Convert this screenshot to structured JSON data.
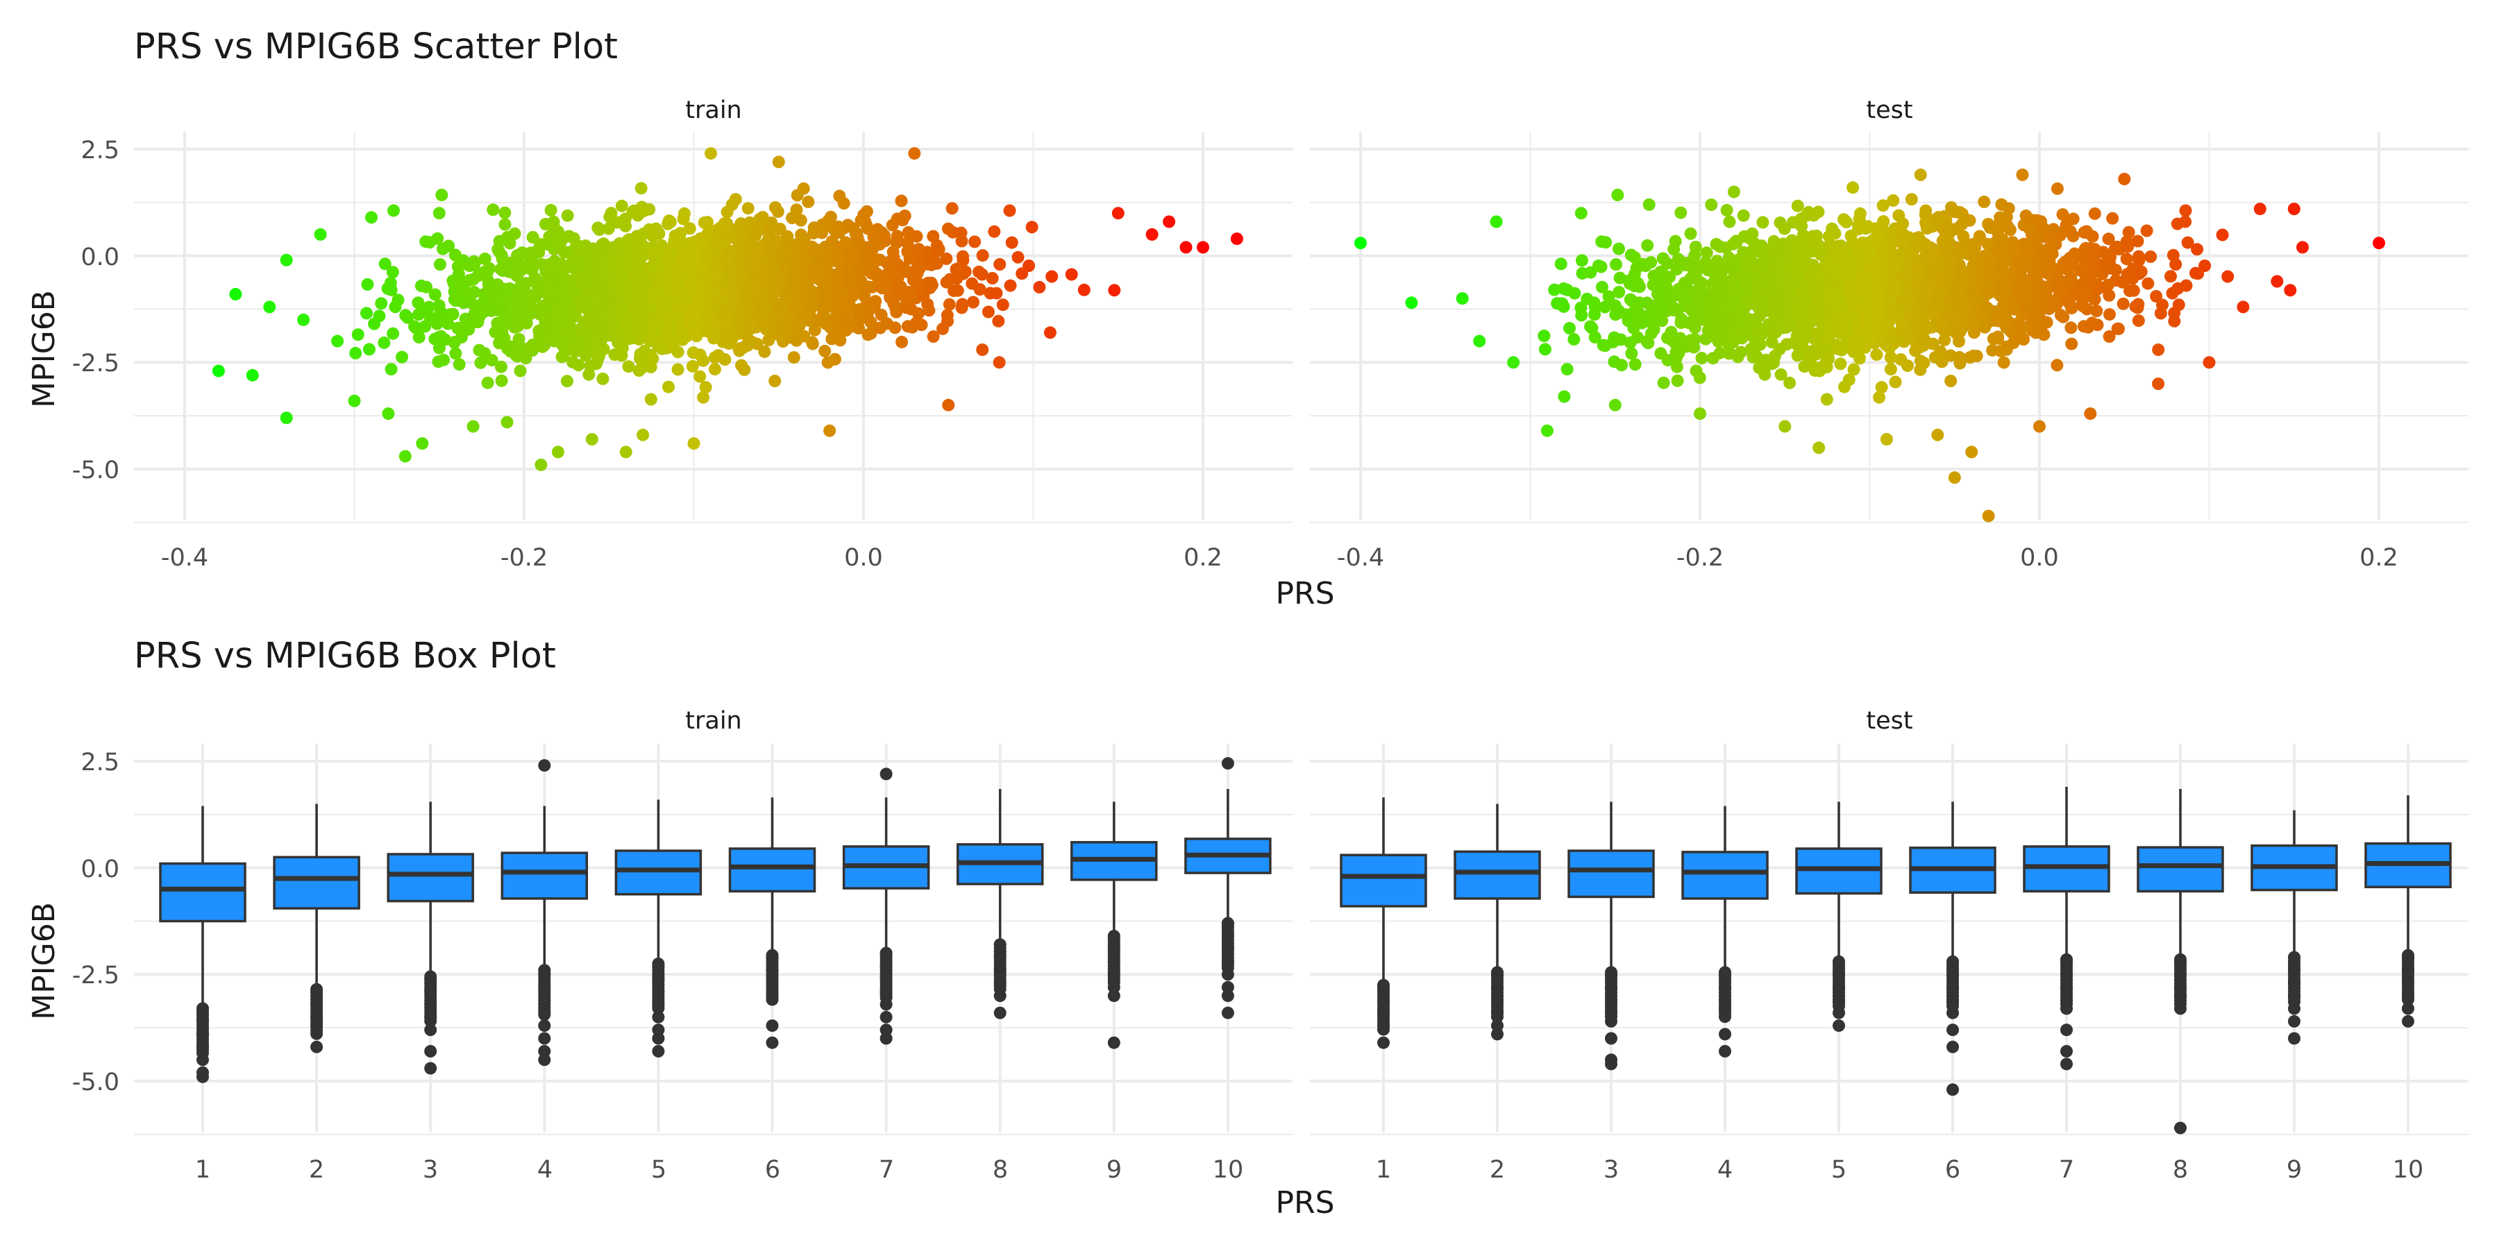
{
  "chart_data": [
    {
      "type": "scatter",
      "title": "PRS vs MPIG6B Scatter Plot",
      "xlabel": "PRS",
      "ylabel": "MPIG6B",
      "facets": [
        "train",
        "test"
      ],
      "xticks": [
        "-0.4",
        "-0.2",
        "0.0",
        "0.2"
      ],
      "yticks": [
        "2.5",
        "0.0",
        "-2.5",
        "-5.0"
      ],
      "xlim": [
        -0.43,
        0.25
      ],
      "ylim": [
        -6.3,
        2.8
      ],
      "grid": true,
      "color_scale": {
        "low": "#00ff00",
        "high": "#ff0000",
        "mapped_to": "PRS"
      },
      "series": [
        {
          "facet": "train",
          "values": [
            [
              -0.38,
              -2.7
            ],
            [
              -0.37,
              -0.9
            ],
            [
              -0.36,
              -2.8
            ],
            [
              -0.35,
              -1.2
            ],
            [
              -0.34,
              -0.1
            ],
            [
              -0.34,
              -3.8
            ],
            [
              -0.33,
              -1.5
            ],
            [
              -0.32,
              0.5
            ],
            [
              -0.31,
              -2.0
            ],
            [
              -0.3,
              -3.4
            ],
            [
              -0.29,
              0.9
            ],
            [
              -0.28,
              -3.7
            ],
            [
              -0.27,
              -4.7
            ],
            [
              -0.26,
              -4.4
            ],
            [
              -0.25,
              1.0
            ],
            [
              -0.23,
              -4.0
            ],
            [
              -0.21,
              -3.9
            ],
            [
              -0.19,
              -4.9
            ],
            [
              -0.18,
              -4.6
            ],
            [
              -0.16,
              -4.3
            ],
            [
              -0.14,
              -4.6
            ],
            [
              -0.13,
              -4.2
            ],
            [
              -0.1,
              -4.4
            ],
            [
              -0.09,
              2.4
            ],
            [
              -0.05,
              2.2
            ],
            [
              -0.02,
              -4.1
            ],
            [
              0.03,
              2.4
            ],
            [
              0.05,
              -3.5
            ],
            [
              0.08,
              -2.5
            ],
            [
              0.11,
              -1.8
            ],
            [
              0.13,
              -0.8
            ],
            [
              0.15,
              1.0
            ],
            [
              0.17,
              0.5
            ],
            [
              0.18,
              0.8
            ],
            [
              0.19,
              0.2
            ],
            [
              0.2,
              0.2
            ],
            [
              0.22,
              0.4
            ]
          ]
        },
        {
          "facet": "test",
          "values": [
            [
              -0.4,
              0.3
            ],
            [
              -0.37,
              -1.1
            ],
            [
              -0.34,
              -1.0
            ],
            [
              -0.33,
              -2.0
            ],
            [
              -0.32,
              0.8
            ],
            [
              -0.31,
              -2.5
            ],
            [
              -0.29,
              -4.1
            ],
            [
              -0.28,
              -3.3
            ],
            [
              -0.27,
              1.0
            ],
            [
              -0.25,
              -3.5
            ],
            [
              -0.23,
              1.2
            ],
            [
              -0.2,
              -3.7
            ],
            [
              -0.18,
              1.5
            ],
            [
              -0.15,
              -4.0
            ],
            [
              -0.13,
              -4.5
            ],
            [
              -0.11,
              1.6
            ],
            [
              -0.09,
              -4.3
            ],
            [
              -0.07,
              1.9
            ],
            [
              -0.06,
              -4.2
            ],
            [
              -0.05,
              -5.2
            ],
            [
              -0.04,
              -4.6
            ],
            [
              -0.03,
              -6.1
            ],
            [
              -0.01,
              1.9
            ],
            [
              0.0,
              -4.0
            ],
            [
              0.03,
              -3.7
            ],
            [
              0.05,
              1.8
            ],
            [
              0.07,
              -3.0
            ],
            [
              0.1,
              -2.5
            ],
            [
              0.12,
              -1.2
            ],
            [
              0.13,
              1.1
            ],
            [
              0.14,
              -0.6
            ],
            [
              0.15,
              1.1
            ],
            [
              0.155,
              0.2
            ],
            [
              0.2,
              0.3
            ]
          ]
        }
      ]
    },
    {
      "type": "box",
      "title": "PRS vs MPIG6B Box Plot",
      "xlabel": "PRS",
      "ylabel": "MPIG6B",
      "facets": [
        "train",
        "test"
      ],
      "categories": [
        "1",
        "2",
        "3",
        "4",
        "5",
        "6",
        "7",
        "8",
        "9",
        "10"
      ],
      "yticks": [
        "2.5",
        "0.0",
        "-2.5",
        "-5.0"
      ],
      "ylim": [
        -6.3,
        2.8
      ],
      "grid": true,
      "fill": "#1e90ff",
      "series": [
        {
          "facet": "train",
          "boxes": [
            {
              "q1": -1.25,
              "median": -0.5,
              "q3": 0.1,
              "whisker_low": -3.2,
              "whisker_high": 1.45,
              "outliers": [
                -3.3,
                -3.6,
                -3.9,
                -4.2,
                -4.5,
                -4.8,
                -4.9
              ]
            },
            {
              "q1": -0.95,
              "median": -0.25,
              "q3": 0.25,
              "whisker_low": -2.75,
              "whisker_high": 1.5,
              "outliers": [
                -2.9,
                -3.2,
                -3.5,
                -3.7,
                -4.2
              ]
            },
            {
              "q1": -0.78,
              "median": -0.15,
              "q3": 0.32,
              "whisker_low": -2.45,
              "whisker_high": 1.55,
              "outliers": [
                -2.6,
                -2.9,
                -3.2,
                -3.5,
                -3.8,
                -4.3,
                -4.7
              ]
            },
            {
              "q1": -0.72,
              "median": -0.1,
              "q3": 0.35,
              "whisker_low": -2.3,
              "whisker_high": 1.45,
              "outliers": [
                -2.5,
                -2.8,
                -3.1,
                -3.4,
                -3.7,
                -4.0,
                -4.3,
                -4.5,
                2.4
              ]
            },
            {
              "q1": -0.62,
              "median": -0.05,
              "q3": 0.4,
              "whisker_low": -2.15,
              "whisker_high": 1.6,
              "outliers": [
                -2.3,
                -2.6,
                -2.9,
                -3.2,
                -3.5,
                -3.8,
                -4.0,
                -4.3
              ]
            },
            {
              "q1": -0.55,
              "median": 0.02,
              "q3": 0.45,
              "whisker_low": -1.95,
              "whisker_high": 1.65,
              "outliers": [
                -2.1,
                -2.4,
                -2.7,
                -3.0,
                -3.7,
                -4.1
              ]
            },
            {
              "q1": -0.48,
              "median": 0.05,
              "q3": 0.5,
              "whisker_low": -1.9,
              "whisker_high": 1.65,
              "outliers": [
                -2.0,
                -2.3,
                -2.6,
                -2.9,
                -3.2,
                -3.5,
                -3.8,
                -4.0,
                2.2
              ]
            },
            {
              "q1": -0.38,
              "median": 0.12,
              "q3": 0.55,
              "whisker_low": -1.7,
              "whisker_high": 1.85,
              "outliers": [
                -1.8,
                -2.1,
                -2.4,
                -2.7,
                -3.0,
                -3.4
              ]
            },
            {
              "q1": -0.28,
              "median": 0.2,
              "q3": 0.6,
              "whisker_low": -1.55,
              "whisker_high": 1.55,
              "outliers": [
                -1.6,
                -1.9,
                -2.2,
                -2.5,
                -2.8,
                -3.0,
                -4.1
              ]
            },
            {
              "q1": -0.12,
              "median": 0.3,
              "q3": 0.68,
              "whisker_low": -1.2,
              "whisker_high": 1.85,
              "outliers": [
                -1.3,
                -1.6,
                -1.9,
                -2.2,
                -2.5,
                -2.8,
                -3.0,
                -3.4,
                2.45
              ]
            }
          ]
        },
        {
          "facet": "test",
          "boxes": [
            {
              "q1": -0.9,
              "median": -0.2,
              "q3": 0.3,
              "whisker_low": -2.65,
              "whisker_high": 1.65,
              "outliers": [
                -2.8,
                -3.1,
                -3.4,
                -3.7,
                -4.1
              ]
            },
            {
              "q1": -0.72,
              "median": -0.1,
              "q3": 0.38,
              "whisker_low": -2.35,
              "whisker_high": 1.5,
              "outliers": [
                -2.5,
                -2.8,
                -3.1,
                -3.4,
                -3.7,
                -3.9
              ]
            },
            {
              "q1": -0.68,
              "median": -0.05,
              "q3": 0.4,
              "whisker_low": -2.35,
              "whisker_high": 1.55,
              "outliers": [
                -2.5,
                -2.8,
                -3.1,
                -3.4,
                -3.6,
                -4.0,
                -4.5,
                -4.6
              ]
            },
            {
              "q1": -0.72,
              "median": -0.1,
              "q3": 0.37,
              "whisker_low": -2.35,
              "whisker_high": 1.45,
              "outliers": [
                -2.5,
                -2.8,
                -3.1,
                -3.3,
                -3.9,
                -4.3
              ]
            },
            {
              "q1": -0.6,
              "median": -0.02,
              "q3": 0.45,
              "whisker_low": -2.1,
              "whisker_high": 1.55,
              "outliers": [
                -2.2,
                -2.5,
                -2.8,
                -3.1,
                -3.4,
                -3.7
              ]
            },
            {
              "q1": -0.58,
              "median": -0.02,
              "q3": 0.47,
              "whisker_low": -2.1,
              "whisker_high": 1.55,
              "outliers": [
                -2.2,
                -2.5,
                -2.8,
                -3.1,
                -3.4,
                -3.8,
                -4.2,
                -5.2
              ]
            },
            {
              "q1": -0.55,
              "median": 0.03,
              "q3": 0.5,
              "whisker_low": -2.05,
              "whisker_high": 1.9,
              "outliers": [
                -2.2,
                -2.5,
                -2.8,
                -3.1,
                -3.3,
                -3.8,
                -4.3,
                -4.6
              ]
            },
            {
              "q1": -0.55,
              "median": 0.05,
              "q3": 0.48,
              "whisker_low": -2.05,
              "whisker_high": 1.85,
              "outliers": [
                -2.2,
                -2.5,
                -2.8,
                -3.0,
                -3.3,
                -6.1
              ]
            },
            {
              "q1": -0.52,
              "median": 0.03,
              "q3": 0.52,
              "whisker_low": -2.0,
              "whisker_high": 1.35,
              "outliers": [
                -2.1,
                -2.4,
                -2.7,
                -3.0,
                -3.3,
                -3.6,
                -4.0
              ]
            },
            {
              "q1": -0.45,
              "median": 0.1,
              "q3": 0.57,
              "whisker_low": -1.95,
              "whisker_high": 1.7,
              "outliers": [
                -2.1,
                -2.4,
                -2.7,
                -3.0,
                -3.3,
                -3.6
              ]
            }
          ]
        }
      ]
    }
  ]
}
